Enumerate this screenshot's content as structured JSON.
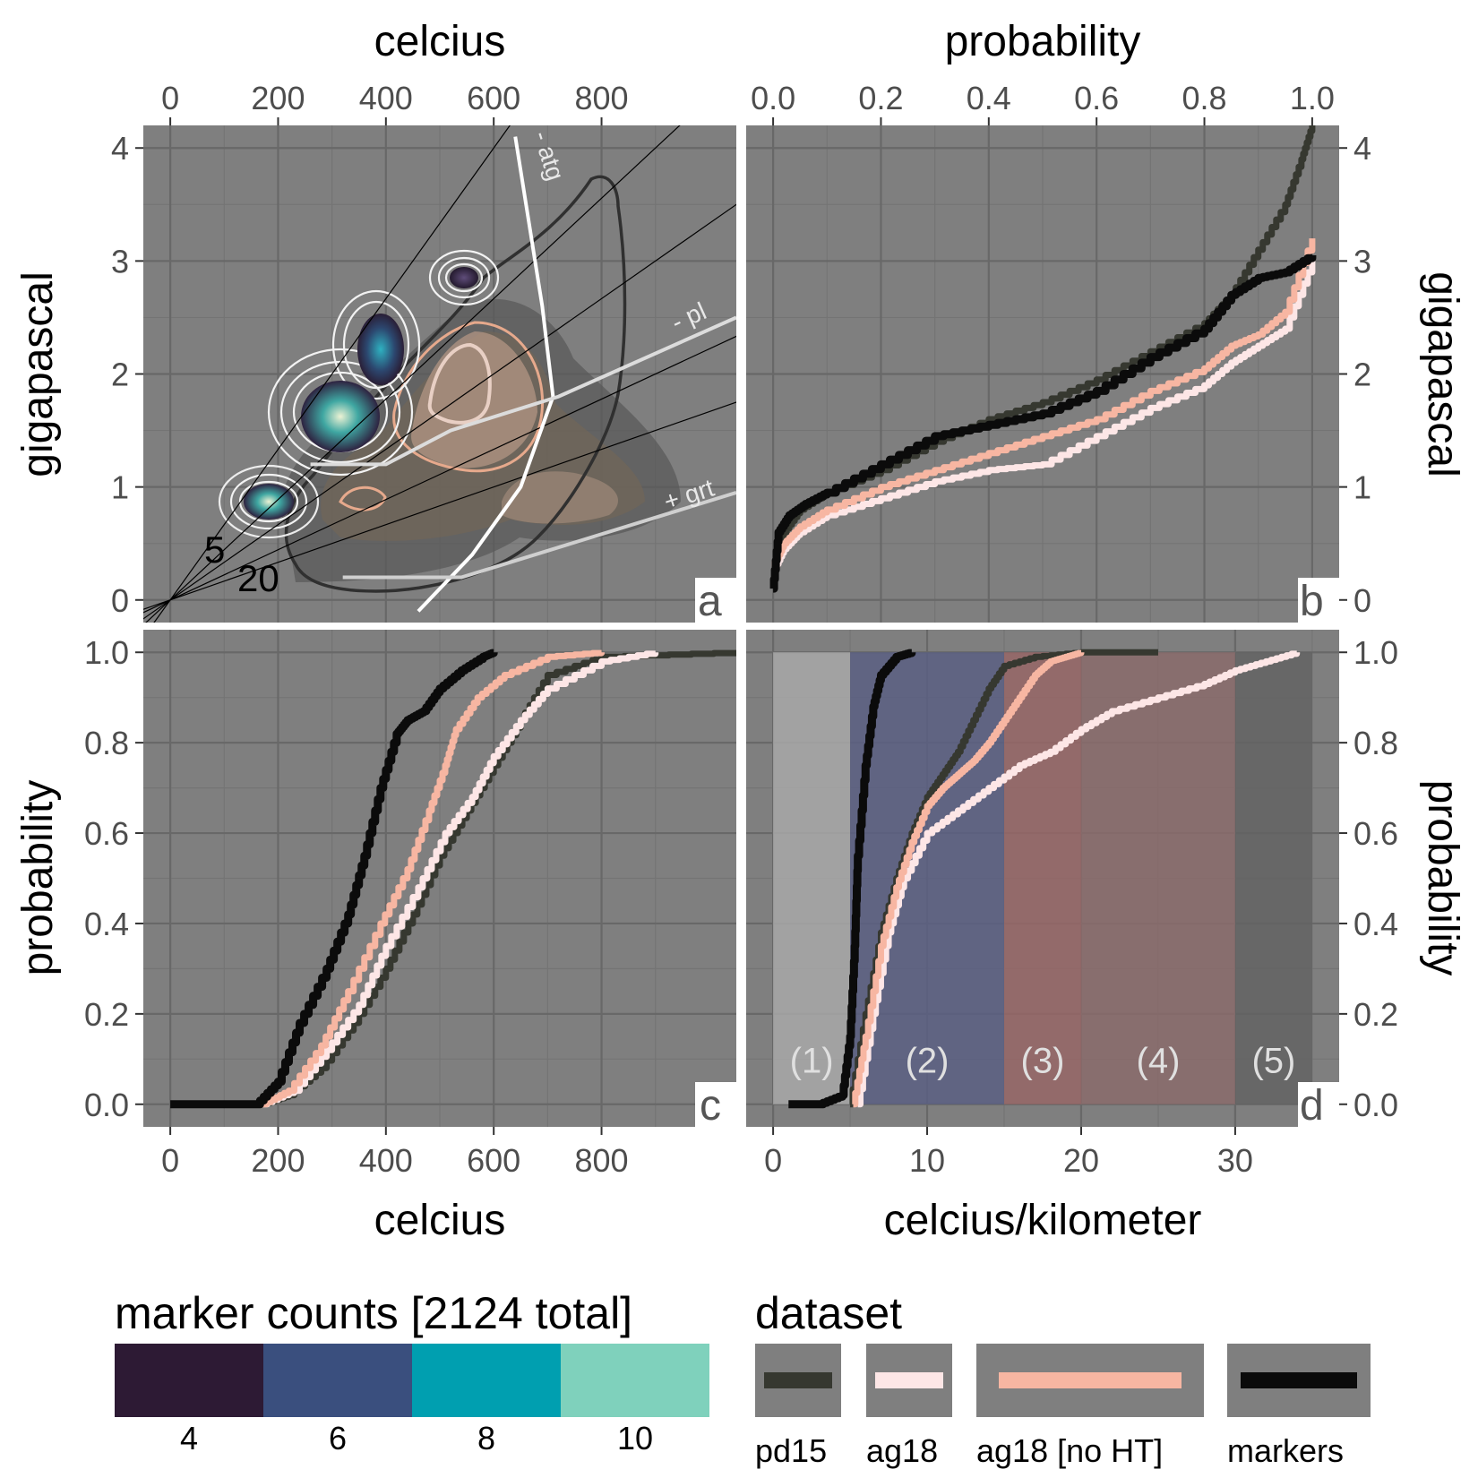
{
  "chart_data": [
    {
      "panel": "a",
      "type": "contour",
      "xlabel": "celcius",
      "ylabel": "gigapascal",
      "xticks": [
        0,
        200,
        400,
        600,
        800
      ],
      "yticks": [
        0,
        1,
        2,
        3,
        4
      ],
      "xlim": [
        -50,
        1050
      ],
      "ylim": [
        -0.2,
        4.2
      ],
      "annotations": {
        "atg": "- atg",
        "pl": "- pl",
        "grt": "+ grt",
        "gradient_5": "5",
        "gradient_20": "20"
      },
      "gradient_lines_cpkm": [
        5,
        7.5,
        10,
        15,
        20
      ],
      "reaction_lines": {
        "atg": [
          [
            460,
            -0.1
          ],
          [
            560,
            0.4
          ],
          [
            650,
            1.0
          ],
          [
            710,
            1.8
          ],
          [
            690,
            2.6
          ],
          [
            660,
            3.5
          ],
          [
            640,
            4.1
          ]
        ],
        "pl": [
          [
            260,
            1.2
          ],
          [
            400,
            1.2
          ],
          [
            520,
            1.5
          ],
          [
            720,
            1.8
          ],
          [
            1050,
            2.5
          ]
        ],
        "grt": [
          [
            320,
            0.2
          ],
          [
            540,
            0.2
          ],
          [
            1050,
            0.95
          ]
        ]
      },
      "marker_density_peaks": [
        {
          "x": 190,
          "y": 0.9,
          "level": 8
        },
        {
          "x": 310,
          "y": 1.6,
          "level": 10
        },
        {
          "x": 400,
          "y": 2.2,
          "level": 6
        },
        {
          "x": 550,
          "y": 2.9,
          "level": 4
        }
      ]
    },
    {
      "panel": "b",
      "type": "line",
      "xlabel": "probability",
      "ylabel": "gigapascal",
      "xticks": [
        0.0,
        0.2,
        0.4,
        0.6,
        0.8,
        1.0
      ],
      "yticks": [
        0,
        1,
        2,
        3,
        4
      ],
      "xlim": [
        -0.05,
        1.05
      ],
      "ylim": [
        -0.2,
        4.2
      ],
      "series": [
        {
          "name": "pd15",
          "x": [
            0,
            0.02,
            0.05,
            0.1,
            0.2,
            0.3,
            0.4,
            0.5,
            0.6,
            0.7,
            0.8,
            0.85,
            0.9,
            0.95,
            0.98,
            1.0
          ],
          "y": [
            0.2,
            0.6,
            0.8,
            0.95,
            1.15,
            1.4,
            1.6,
            1.75,
            1.95,
            2.2,
            2.45,
            2.7,
            3.1,
            3.5,
            3.9,
            4.2
          ]
        },
        {
          "name": "ag18",
          "x": [
            0,
            0.02,
            0.05,
            0.1,
            0.2,
            0.3,
            0.4,
            0.5,
            0.6,
            0.7,
            0.8,
            0.85,
            0.9,
            0.95,
            1.0
          ],
          "y": [
            0.25,
            0.45,
            0.6,
            0.75,
            0.9,
            1.05,
            1.15,
            1.2,
            1.45,
            1.7,
            1.9,
            2.1,
            2.25,
            2.4,
            3.0
          ]
        },
        {
          "name": "ag18 [no HT]",
          "x": [
            0,
            0.02,
            0.05,
            0.1,
            0.2,
            0.3,
            0.4,
            0.5,
            0.6,
            0.7,
            0.8,
            0.85,
            0.9,
            0.95,
            1.0
          ],
          "y": [
            0.3,
            0.5,
            0.65,
            0.8,
            1.0,
            1.15,
            1.3,
            1.45,
            1.6,
            1.85,
            2.05,
            2.25,
            2.35,
            2.55,
            3.2
          ]
        },
        {
          "name": "markers",
          "x": [
            0,
            0.01,
            0.03,
            0.06,
            0.1,
            0.2,
            0.3,
            0.4,
            0.5,
            0.6,
            0.7,
            0.8,
            0.85,
            0.9,
            0.95,
            1.0
          ],
          "y": [
            0.1,
            0.6,
            0.75,
            0.85,
            0.95,
            1.2,
            1.45,
            1.55,
            1.65,
            1.85,
            2.15,
            2.4,
            2.7,
            2.85,
            2.9,
            3.05
          ]
        }
      ],
      "panel_tag": "b"
    },
    {
      "panel": "c",
      "type": "line",
      "xlabel": "celcius",
      "ylabel": "probability",
      "xticks": [
        0,
        200,
        400,
        600,
        800
      ],
      "yticks": [
        "0.0",
        "0.2",
        "0.4",
        "0.6",
        "0.8",
        "1.0"
      ],
      "xlim": [
        -50,
        1050
      ],
      "ylim": [
        -0.05,
        1.05
      ],
      "series": [
        {
          "name": "pd15",
          "x": [
            170,
            220,
            280,
            340,
            400,
            450,
            500,
            550,
            600,
            650,
            700,
            800,
            1050
          ],
          "y": [
            0,
            0.02,
            0.08,
            0.18,
            0.3,
            0.42,
            0.55,
            0.65,
            0.75,
            0.85,
            0.95,
            0.99,
            1.0
          ]
        },
        {
          "name": "ag18",
          "x": [
            170,
            230,
            290,
            350,
            400,
            460,
            510,
            560,
            600,
            650,
            700,
            800,
            900
          ],
          "y": [
            0,
            0.03,
            0.12,
            0.22,
            0.35,
            0.48,
            0.6,
            0.68,
            0.77,
            0.85,
            0.92,
            0.98,
            1.0
          ]
        },
        {
          "name": "ag18 [no HT]",
          "x": [
            170,
            220,
            280,
            330,
            390,
            440,
            480,
            510,
            530,
            570,
            620,
            700,
            800
          ],
          "y": [
            0,
            0.03,
            0.13,
            0.25,
            0.4,
            0.52,
            0.65,
            0.75,
            0.83,
            0.9,
            0.95,
            0.99,
            1.0
          ]
        },
        {
          "name": "markers",
          "x": [
            0,
            160,
            200,
            240,
            290,
            330,
            360,
            390,
            420,
            440,
            470,
            500,
            540,
            580,
            600
          ],
          "y": [
            0,
            0,
            0.05,
            0.18,
            0.3,
            0.42,
            0.55,
            0.7,
            0.82,
            0.85,
            0.87,
            0.92,
            0.96,
            0.99,
            1.0
          ]
        }
      ],
      "panel_tag": "c"
    },
    {
      "panel": "d",
      "type": "line",
      "xlabel": "celcius/kilometer",
      "ylabel": "probability",
      "xticks": [
        0,
        10,
        20,
        30
      ],
      "yticks": [
        "0.0",
        "0.2",
        "0.4",
        "0.6",
        "0.8",
        "1.0"
      ],
      "xlim": [
        -1.75,
        36.75
      ],
      "ylim": [
        -0.05,
        1.05
      ],
      "regions": [
        {
          "label": "(1)",
          "from": 0,
          "to": 5,
          "color": "#a8a8a8"
        },
        {
          "label": "(2)",
          "from": 5,
          "to": 15,
          "color": "#5b5f82"
        },
        {
          "label": "(3)",
          "from": 15,
          "to": 20,
          "color": "#966666"
        },
        {
          "label": "(4)",
          "from": 20,
          "to": 30,
          "color": "#8a6b6b"
        },
        {
          "label": "(5)",
          "from": 30,
          "to": 35,
          "color": "#636363"
        }
      ],
      "series": [
        {
          "name": "pd15",
          "x": [
            5,
            6,
            7,
            8,
            9,
            10,
            11,
            12,
            13,
            14,
            15,
            17,
            20,
            25
          ],
          "y": [
            0,
            0.2,
            0.38,
            0.5,
            0.6,
            0.68,
            0.73,
            0.78,
            0.85,
            0.92,
            0.97,
            0.99,
            1.0,
            1.0
          ]
        },
        {
          "name": "ag18",
          "x": [
            5.5,
            6.5,
            7.5,
            8.5,
            10,
            12,
            14,
            16,
            18,
            20,
            22,
            25,
            28,
            30,
            32,
            34
          ],
          "y": [
            0,
            0.2,
            0.38,
            0.5,
            0.6,
            0.65,
            0.7,
            0.75,
            0.78,
            0.83,
            0.87,
            0.9,
            0.93,
            0.96,
            0.98,
            1.0
          ]
        },
        {
          "name": "ag18 [no HT]",
          "x": [
            5.2,
            6,
            7,
            8,
            9,
            10,
            11,
            12,
            13,
            14,
            15,
            16,
            17,
            18,
            19,
            20
          ],
          "y": [
            0,
            0.15,
            0.35,
            0.48,
            0.58,
            0.66,
            0.7,
            0.73,
            0.76,
            0.8,
            0.85,
            0.9,
            0.95,
            0.98,
            0.99,
            1.0
          ]
        },
        {
          "name": "markers",
          "x": [
            1,
            3,
            4.5,
            5,
            5.3,
            5.5,
            6,
            6.5,
            7,
            8,
            9
          ],
          "y": [
            0,
            0,
            0.02,
            0.15,
            0.35,
            0.55,
            0.75,
            0.88,
            0.95,
            0.99,
            1.0
          ]
        }
      ],
      "panel_tag": "d"
    }
  ],
  "colors": {
    "panel_bg": "#7f7f7f",
    "grid_major": "#686868",
    "grid_minor": "#747474",
    "pd15": "#363830",
    "ag18": "#fde6e6",
    "ag18_noHT": "#f7b6a2",
    "markers": "#0b0b0b"
  },
  "legend_counts": {
    "title": "marker counts [2124 total]",
    "bins": [
      {
        "label": "4",
        "color": "#2d1a34"
      },
      {
        "label": "6",
        "color": "#3a4f7e"
      },
      {
        "label": "8",
        "color": "#009fb0"
      },
      {
        "label": "10",
        "color": "#7fd1bc"
      }
    ]
  },
  "legend_dataset": {
    "title": "dataset",
    "items": [
      {
        "label": "pd15",
        "color": "#363830"
      },
      {
        "label": "ag18",
        "color": "#fde6e6"
      },
      {
        "label": "ag18 [no HT]",
        "color": "#f7b6a2"
      },
      {
        "label": "markers",
        "color": "#0b0b0b"
      }
    ]
  }
}
